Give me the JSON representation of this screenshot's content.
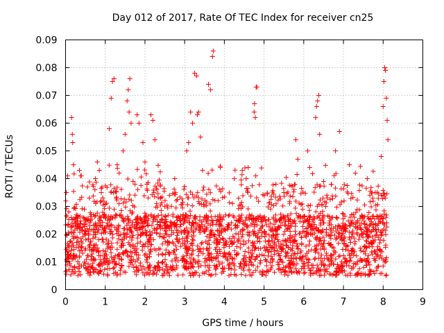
{
  "chart_data": {
    "type": "scatter",
    "title": "Day 012 of 2017, Rate Of TEC Index for receiver cn25",
    "xlabel": "GPS time / hours",
    "ylabel": "ROTI / TECUs",
    "xlim": [
      0,
      9
    ],
    "ylim": [
      0,
      0.09
    ],
    "grid": true,
    "legend": "none",
    "marker": "plus",
    "series_color": "#ff0000",
    "x_ticks": [
      "0",
      "1",
      "2",
      "3",
      "4",
      "5",
      "6",
      "7",
      "8",
      "9"
    ],
    "y_ticks": [
      "0",
      "0.01",
      "0.02",
      "0.03",
      "0.04",
      "0.05",
      "0.06",
      "0.07",
      "0.08",
      "0.09"
    ],
    "x_tick_values": [
      0,
      1,
      2,
      3,
      4,
      5,
      6,
      7,
      8,
      9
    ],
    "y_tick_values": [
      0,
      0.01,
      0.02,
      0.03,
      0.04,
      0.05,
      0.06,
      0.07,
      0.08,
      0.09
    ],
    "series": [
      {
        "name": "ROTI",
        "points": [
          [
            0.02,
            0.035
          ],
          [
            0.05,
            0.041
          ],
          [
            0.08,
            0.028
          ],
          [
            0.15,
            0.062
          ],
          [
            0.17,
            0.056
          ],
          [
            0.18,
            0.053
          ],
          [
            0.2,
            0.045
          ],
          [
            0.35,
            0.043
          ],
          [
            0.38,
            0.041
          ],
          [
            0.55,
            0.037
          ],
          [
            0.6,
            0.033
          ],
          [
            0.75,
            0.04
          ],
          [
            0.8,
            0.046
          ],
          [
            0.85,
            0.043
          ],
          [
            0.9,
            0.035
          ],
          [
            1.1,
            0.058
          ],
          [
            1.15,
            0.069
          ],
          [
            1.18,
            0.075
          ],
          [
            1.22,
            0.076
          ],
          [
            1.3,
            0.045
          ],
          [
            1.35,
            0.042
          ],
          [
            1.45,
            0.05
          ],
          [
            1.5,
            0.056
          ],
          [
            1.55,
            0.068
          ],
          [
            1.58,
            0.072
          ],
          [
            1.6,
            0.064
          ],
          [
            1.62,
            0.076
          ],
          [
            1.65,
            0.06
          ],
          [
            1.7,
            0.039
          ],
          [
            1.75,
            0.038
          ],
          [
            1.8,
            0.063
          ],
          [
            1.85,
            0.06
          ],
          [
            1.95,
            0.053
          ],
          [
            2.0,
            0.046
          ],
          [
            2.15,
            0.063
          ],
          [
            2.2,
            0.061
          ],
          [
            2.25,
            0.054
          ],
          [
            2.3,
            0.036
          ],
          [
            2.5,
            0.03
          ],
          [
            2.75,
            0.04
          ],
          [
            3.05,
            0.05
          ],
          [
            3.1,
            0.053
          ],
          [
            3.15,
            0.064
          ],
          [
            3.2,
            0.06
          ],
          [
            3.25,
            0.078
          ],
          [
            3.3,
            0.077
          ],
          [
            3.32,
            0.063
          ],
          [
            3.35,
            0.064
          ],
          [
            3.4,
            0.055
          ],
          [
            3.45,
            0.043
          ],
          [
            3.6,
            0.074
          ],
          [
            3.65,
            0.072
          ],
          [
            3.7,
            0.084
          ],
          [
            3.72,
            0.086
          ],
          [
            3.9,
            0.044
          ],
          [
            4.25,
            0.04
          ],
          [
            4.45,
            0.043
          ],
          [
            4.55,
            0.04
          ],
          [
            4.6,
            0.044
          ],
          [
            4.75,
            0.064
          ],
          [
            4.76,
            0.067
          ],
          [
            4.78,
            0.062
          ],
          [
            4.8,
            0.073
          ],
          [
            4.82,
            0.073
          ],
          [
            5.3,
            0.038
          ],
          [
            5.5,
            0.035
          ],
          [
            5.8,
            0.054
          ],
          [
            5.85,
            0.047
          ],
          [
            6.1,
            0.05
          ],
          [
            6.15,
            0.044
          ],
          [
            6.3,
            0.062
          ],
          [
            6.32,
            0.066
          ],
          [
            6.35,
            0.068
          ],
          [
            6.38,
            0.07
          ],
          [
            6.4,
            0.056
          ],
          [
            6.5,
            0.039
          ],
          [
            6.8,
            0.05
          ],
          [
            6.9,
            0.057
          ],
          [
            7.15,
            0.045
          ],
          [
            7.3,
            0.042
          ],
          [
            7.6,
            0.04
          ],
          [
            7.8,
            0.035
          ],
          [
            7.95,
            0.048
          ],
          [
            8.0,
            0.066
          ],
          [
            8.02,
            0.075
          ],
          [
            8.04,
            0.08
          ],
          [
            8.06,
            0.079
          ],
          [
            8.08,
            0.069
          ],
          [
            8.1,
            0.061
          ],
          [
            8.12,
            0.054
          ]
        ]
      }
    ]
  }
}
